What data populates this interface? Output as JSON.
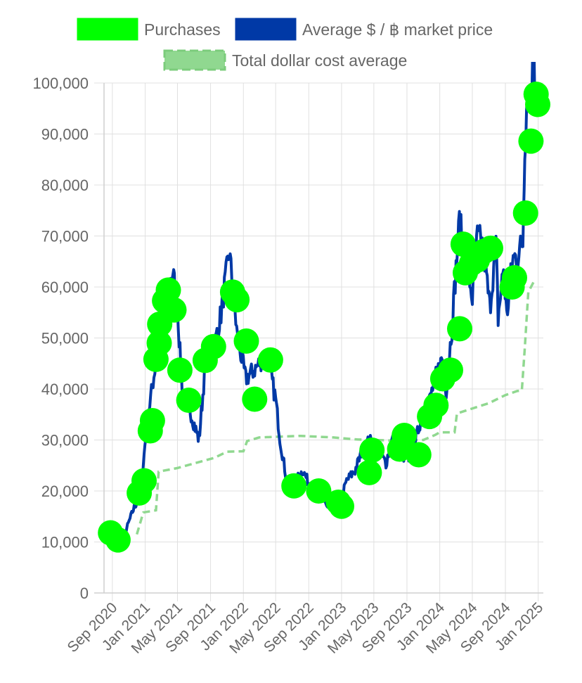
{
  "legend": {
    "purchases": "Purchases",
    "market": "Average $ / ฿ market price",
    "dca": "Total dollar cost average"
  },
  "colors": {
    "purchases": "#00ff00",
    "market": "#0039a6",
    "dca": "#90d890",
    "grid": "#e0e0e0",
    "text": "#666666"
  },
  "chart_data": {
    "type": "line",
    "legend_placement": "top-center",
    "grid": true,
    "ylim": [
      0,
      100000
    ],
    "y_ticks": [
      0,
      10000,
      20000,
      30000,
      40000,
      50000,
      60000,
      70000,
      80000,
      90000,
      100000
    ],
    "y_tick_labels": [
      "0",
      "10,000",
      "20,000",
      "30,000",
      "40,000",
      "50,000",
      "60,000",
      "70,000",
      "80,000",
      "90,000",
      "100,000"
    ],
    "x_range": [
      "2020-08-01",
      "2025-01-20"
    ],
    "x_ticks": [
      "2020-09-01",
      "2021-01-01",
      "2021-05-01",
      "2021-09-01",
      "2022-01-01",
      "2022-05-01",
      "2022-09-01",
      "2023-01-01",
      "2023-05-01",
      "2023-09-01",
      "2024-01-01",
      "2024-05-01",
      "2024-09-01",
      "2025-01-01"
    ],
    "x_tick_labels": [
      "Sep 2020",
      "Jan 2021",
      "May 2021",
      "Sep 2021",
      "Jan 2022",
      "May 2022",
      "Sep 2022",
      "Jan 2023",
      "May 2023",
      "Sep 2023",
      "Jan 2024",
      "May 2024",
      "Sep 2024",
      "Jan 2025"
    ],
    "series": [
      {
        "name": "Average $ / ฿ market price",
        "type": "line",
        "points": [
          [
            "2020-08-15",
            11500
          ],
          [
            "2020-09-15",
            10600
          ],
          [
            "2020-10-15",
            11200
          ],
          [
            "2020-11-15",
            16000
          ],
          [
            "2020-12-15",
            19500
          ],
          [
            "2020-12-31",
            29000
          ],
          [
            "2021-01-15",
            36000
          ],
          [
            "2021-02-15",
            47000
          ],
          [
            "2021-02-25",
            52000
          ],
          [
            "2021-03-15",
            57000
          ],
          [
            "2021-04-14",
            63000
          ],
          [
            "2021-05-01",
            56000
          ],
          [
            "2021-05-20",
            38000
          ],
          [
            "2021-06-15",
            36000
          ],
          [
            "2021-07-20",
            30000
          ],
          [
            "2021-08-15",
            46000
          ],
          [
            "2021-09-07",
            46000
          ],
          [
            "2021-10-10",
            55000
          ],
          [
            "2021-11-10",
            67000
          ],
          [
            "2021-12-10",
            50000
          ],
          [
            "2022-01-10",
            42000
          ],
          [
            "2022-02-15",
            44000
          ],
          [
            "2022-03-28",
            47000
          ],
          [
            "2022-05-01",
            38000
          ],
          [
            "2022-05-20",
            29000
          ],
          [
            "2022-06-18",
            20000
          ],
          [
            "2022-08-10",
            24000
          ],
          [
            "2022-09-15",
            20000
          ],
          [
            "2022-10-15",
            19500
          ],
          [
            "2022-11-10",
            16500
          ],
          [
            "2022-12-20",
            16800
          ],
          [
            "2023-01-20",
            22000
          ],
          [
            "2023-02-20",
            24000
          ],
          [
            "2023-03-20",
            28000
          ],
          [
            "2023-04-15",
            30000
          ],
          [
            "2023-06-15",
            25500
          ],
          [
            "2023-07-10",
            30500
          ],
          [
            "2023-08-20",
            26000
          ],
          [
            "2023-09-20",
            27000
          ],
          [
            "2023-10-25",
            34500
          ],
          [
            "2023-11-20",
            37000
          ],
          [
            "2023-12-15",
            42000
          ],
          [
            "2024-01-10",
            46000
          ],
          [
            "2024-01-25",
            40000
          ],
          [
            "2024-02-15",
            52000
          ],
          [
            "2024-03-14",
            73000
          ],
          [
            "2024-04-15",
            63000
          ],
          [
            "2024-05-01",
            58000
          ],
          [
            "2024-05-20",
            70000
          ],
          [
            "2024-06-10",
            68000
          ],
          [
            "2024-07-05",
            56000
          ],
          [
            "2024-07-28",
            68000
          ],
          [
            "2024-08-05",
            54000
          ],
          [
            "2024-08-25",
            64000
          ],
          [
            "2024-09-06",
            54000
          ],
          [
            "2024-09-27",
            65500
          ],
          [
            "2024-10-15",
            66000
          ],
          [
            "2024-11-05",
            69000
          ],
          [
            "2024-11-12",
            88000
          ],
          [
            "2024-11-22",
            98500
          ],
          [
            "2024-12-05",
            98000
          ],
          [
            "2024-12-17",
            106000
          ],
          [
            "2024-12-22",
            95000
          ]
        ]
      },
      {
        "name": "Total dollar cost average",
        "type": "step-line",
        "points": [
          [
            "2020-12-01",
            11500
          ],
          [
            "2020-12-25",
            15800
          ],
          [
            "2021-02-10",
            16200
          ],
          [
            "2021-02-20",
            23800
          ],
          [
            "2021-05-01",
            24500
          ],
          [
            "2021-09-15",
            26500
          ],
          [
            "2021-11-01",
            27700
          ],
          [
            "2022-01-01",
            27800
          ],
          [
            "2022-01-15",
            29800
          ],
          [
            "2022-03-01",
            30500
          ],
          [
            "2022-08-01",
            30800
          ],
          [
            "2022-12-01",
            30500
          ],
          [
            "2023-03-01",
            30100
          ],
          [
            "2023-07-01",
            29900
          ],
          [
            "2023-11-01",
            30000
          ],
          [
            "2023-12-15",
            31000
          ],
          [
            "2024-01-01",
            31500
          ],
          [
            "2024-02-25",
            31500
          ],
          [
            "2024-03-05",
            35200
          ],
          [
            "2024-05-20",
            36500
          ],
          [
            "2024-07-01",
            37200
          ],
          [
            "2024-09-01",
            38800
          ],
          [
            "2024-10-15",
            39600
          ],
          [
            "2024-11-01",
            39700
          ],
          [
            "2024-11-12",
            48000
          ],
          [
            "2024-11-25",
            59000
          ],
          [
            "2024-12-20",
            61500
          ]
        ]
      },
      {
        "name": "Purchases",
        "type": "scatter",
        "points": [
          [
            "2020-08-25",
            11800
          ],
          [
            "2020-09-22",
            10400
          ],
          [
            "2020-12-10",
            19600
          ],
          [
            "2020-12-28",
            22000
          ],
          [
            "2021-01-20",
            31800
          ],
          [
            "2021-01-28",
            33800
          ],
          [
            "2021-02-10",
            45800
          ],
          [
            "2021-02-22",
            49000
          ],
          [
            "2021-02-24",
            52700
          ],
          [
            "2021-03-14",
            57300
          ],
          [
            "2021-03-28",
            59400
          ],
          [
            "2021-04-18",
            55500
          ],
          [
            "2021-05-10",
            43700
          ],
          [
            "2021-06-12",
            37800
          ],
          [
            "2021-08-12",
            45600
          ],
          [
            "2021-09-12",
            48300
          ],
          [
            "2021-11-22",
            59000
          ],
          [
            "2021-12-08",
            57500
          ],
          [
            "2022-01-12",
            49400
          ],
          [
            "2022-02-12",
            38000
          ],
          [
            "2022-04-12",
            45700
          ],
          [
            "2022-07-08",
            21000
          ],
          [
            "2022-10-08",
            20000
          ],
          [
            "2022-12-20",
            17800
          ],
          [
            "2023-01-01",
            17000
          ],
          [
            "2023-04-14",
            23600
          ],
          [
            "2023-04-24",
            28000
          ],
          [
            "2023-08-05",
            28200
          ],
          [
            "2023-08-22",
            30900
          ],
          [
            "2023-10-15",
            27100
          ],
          [
            "2023-11-24",
            34600
          ],
          [
            "2023-12-18",
            36800
          ],
          [
            "2024-01-12",
            42000
          ],
          [
            "2024-02-10",
            43700
          ],
          [
            "2024-03-15",
            51800
          ],
          [
            "2024-03-28",
            68400
          ],
          [
            "2024-04-05",
            62800
          ],
          [
            "2024-04-28",
            64600
          ],
          [
            "2024-05-20",
            65300
          ],
          [
            "2024-06-14",
            67000
          ],
          [
            "2024-07-08",
            67600
          ],
          [
            "2024-09-26",
            60000
          ],
          [
            "2024-10-05",
            61800
          ],
          [
            "2024-11-15",
            74500
          ],
          [
            "2024-12-05",
            88600
          ],
          [
            "2024-12-24",
            97800
          ],
          [
            "2024-12-30",
            95800
          ]
        ]
      }
    ]
  }
}
